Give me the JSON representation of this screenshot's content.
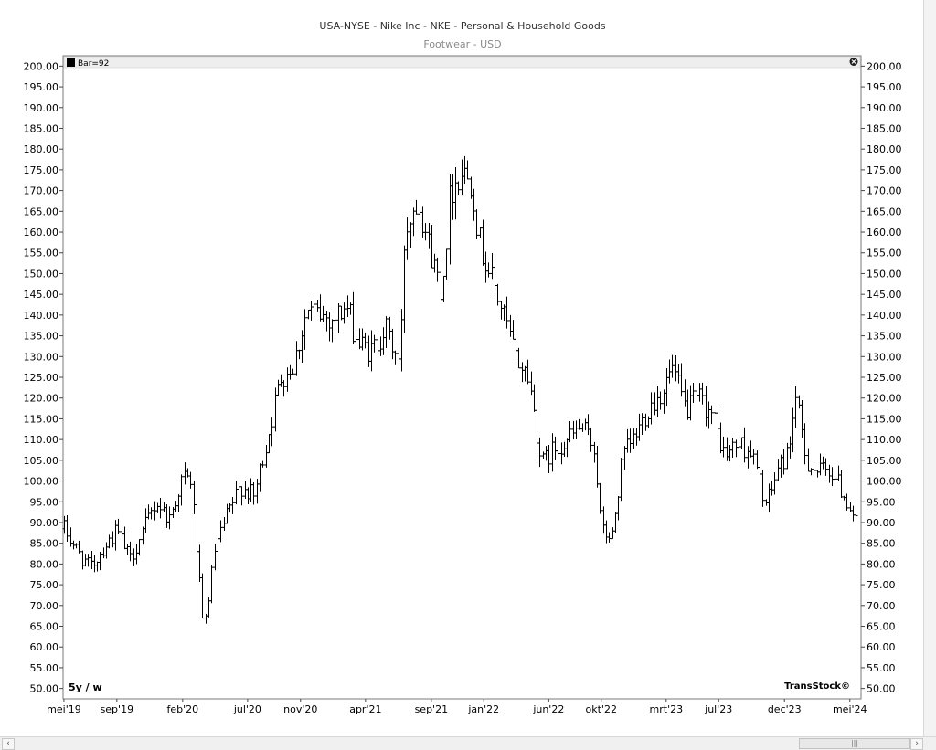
{
  "chart_data": {
    "type": "ohlc-bar",
    "title": "USA-NYSE - Nike Inc - NKE - Personal & Household Goods",
    "subtitle": "Footwear - USD",
    "legend": "Bar=92",
    "period_label": "5y / w",
    "brand": "TransStock©",
    "ylim": [
      47.5,
      202.5
    ],
    "yticks": [
      200,
      195,
      190,
      185,
      180,
      175,
      170,
      165,
      160,
      155,
      150,
      145,
      140,
      135,
      130,
      125,
      120,
      115,
      110,
      105,
      100,
      95,
      90,
      85,
      80,
      75,
      70,
      65,
      60,
      55,
      50
    ],
    "xlim": [
      "2019-04-29",
      "2024-05-27"
    ],
    "x_ticks": [
      {
        "label": "mei'19",
        "date": "2019-05-01"
      },
      {
        "label": "sep'19",
        "date": "2019-09-01"
      },
      {
        "label": "feb'20",
        "date": "2020-02-01"
      },
      {
        "label": "jul'20",
        "date": "2020-07-01"
      },
      {
        "label": "nov'20",
        "date": "2020-11-01"
      },
      {
        "label": "apr'21",
        "date": "2021-04-01"
      },
      {
        "label": "sep'21",
        "date": "2021-09-01"
      },
      {
        "label": "jan'22",
        "date": "2022-01-01"
      },
      {
        "label": "jun'22",
        "date": "2022-06-01"
      },
      {
        "label": "okt'22",
        "date": "2022-10-01"
      },
      {
        "label": "mrt'23",
        "date": "2023-03-01"
      },
      {
        "label": "jul'23",
        "date": "2023-07-01"
      },
      {
        "label": "dec'23",
        "date": "2023-12-01"
      },
      {
        "label": "mei'24",
        "date": "2024-05-01"
      }
    ],
    "series_dates": [
      "2019-05-01",
      "2019-06-01",
      "2019-07-01",
      "2019-08-01",
      "2019-09-01",
      "2019-10-01",
      "2019-11-01",
      "2019-12-01",
      "2020-01-01",
      "2020-02-01",
      "2020-02-20",
      "2020-03-01",
      "2020-03-20",
      "2020-04-15",
      "2020-05-15",
      "2020-06-15",
      "2020-07-15",
      "2020-08-15",
      "2020-09-15",
      "2020-10-15",
      "2020-11-15",
      "2020-12-15",
      "2021-01-15",
      "2021-02-15",
      "2021-03-15",
      "2021-04-15",
      "2021-05-15",
      "2021-06-20",
      "2021-07-01",
      "2021-08-01",
      "2021-08-25",
      "2021-09-25",
      "2021-10-15",
      "2021-11-10",
      "2021-12-05",
      "2021-12-20",
      "2022-01-15",
      "2022-02-15",
      "2022-03-15",
      "2022-04-15",
      "2022-05-15",
      "2022-06-15",
      "2022-07-15",
      "2022-08-15",
      "2022-09-15",
      "2022-10-01",
      "2022-10-25",
      "2022-11-20",
      "2022-12-15",
      "2023-01-20",
      "2023-02-15",
      "2023-03-15",
      "2023-04-15",
      "2023-05-15",
      "2023-06-15",
      "2023-07-15",
      "2023-08-15",
      "2023-09-15",
      "2023-10-20",
      "2023-11-15",
      "2023-12-10",
      "2023-12-25",
      "2024-01-20",
      "2024-02-15",
      "2024-03-15",
      "2024-04-15",
      "2024-05-20"
    ],
    "series_close": [
      88.5,
      83,
      79,
      84,
      88,
      81,
      88,
      95,
      91,
      101,
      100,
      88,
      63,
      83,
      92,
      99,
      96,
      110,
      125,
      128,
      141,
      140,
      139,
      142,
      133,
      131,
      137,
      128,
      160,
      169,
      157,
      146,
      170,
      175,
      172,
      158,
      150,
      140,
      130,
      125,
      104,
      108,
      110,
      113,
      108,
      88,
      86,
      106,
      110,
      118,
      121,
      127,
      117,
      120,
      116,
      106,
      109,
      107,
      94,
      103,
      107,
      121,
      105,
      102,
      103,
      97,
      90
    ],
    "weeks_per_year": 52
  },
  "ui": {
    "close_icon": "close-icon",
    "legend_swatch_color": "#000000",
    "scroll_left_icon": "chevron-left-icon",
    "scroll_right_icon": "chevron-right-icon",
    "scroll_grip_icon": "grip-icon"
  }
}
